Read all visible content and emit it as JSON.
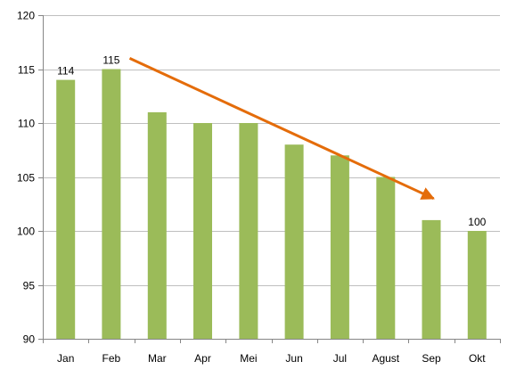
{
  "chart_data": {
    "type": "bar",
    "categories": [
      "Jan",
      "Feb",
      "Mar",
      "Apr",
      "Mei",
      "Jun",
      "Jul",
      "Agust",
      "Sep",
      "Okt"
    ],
    "series": [
      {
        "values": [
          114,
          115,
          111,
          110,
          110,
          108,
          107,
          105,
          101,
          100
        ],
        "color": "#9BBB59"
      }
    ],
    "data_labels": [
      {
        "category": "Jan",
        "text": "114"
      },
      {
        "category": "Feb",
        "text": "115"
      },
      {
        "category": "Okt",
        "text": "100"
      }
    ],
    "y_ticks": [
      "90",
      "95",
      "100",
      "105",
      "110",
      "115",
      "120"
    ],
    "ylim": [
      90,
      120
    ],
    "grid": true,
    "legend": "none",
    "annotations": [
      {
        "type": "trend-arrow",
        "from": {
          "category": "Feb",
          "value": 116
        },
        "to": {
          "category": "Sep",
          "value": 103
        },
        "color": "#E46C0A"
      }
    ],
    "title": "",
    "xlabel": "",
    "ylabel": ""
  },
  "colors": {
    "grid": "#BFBFBF",
    "axis": "#868686"
  }
}
